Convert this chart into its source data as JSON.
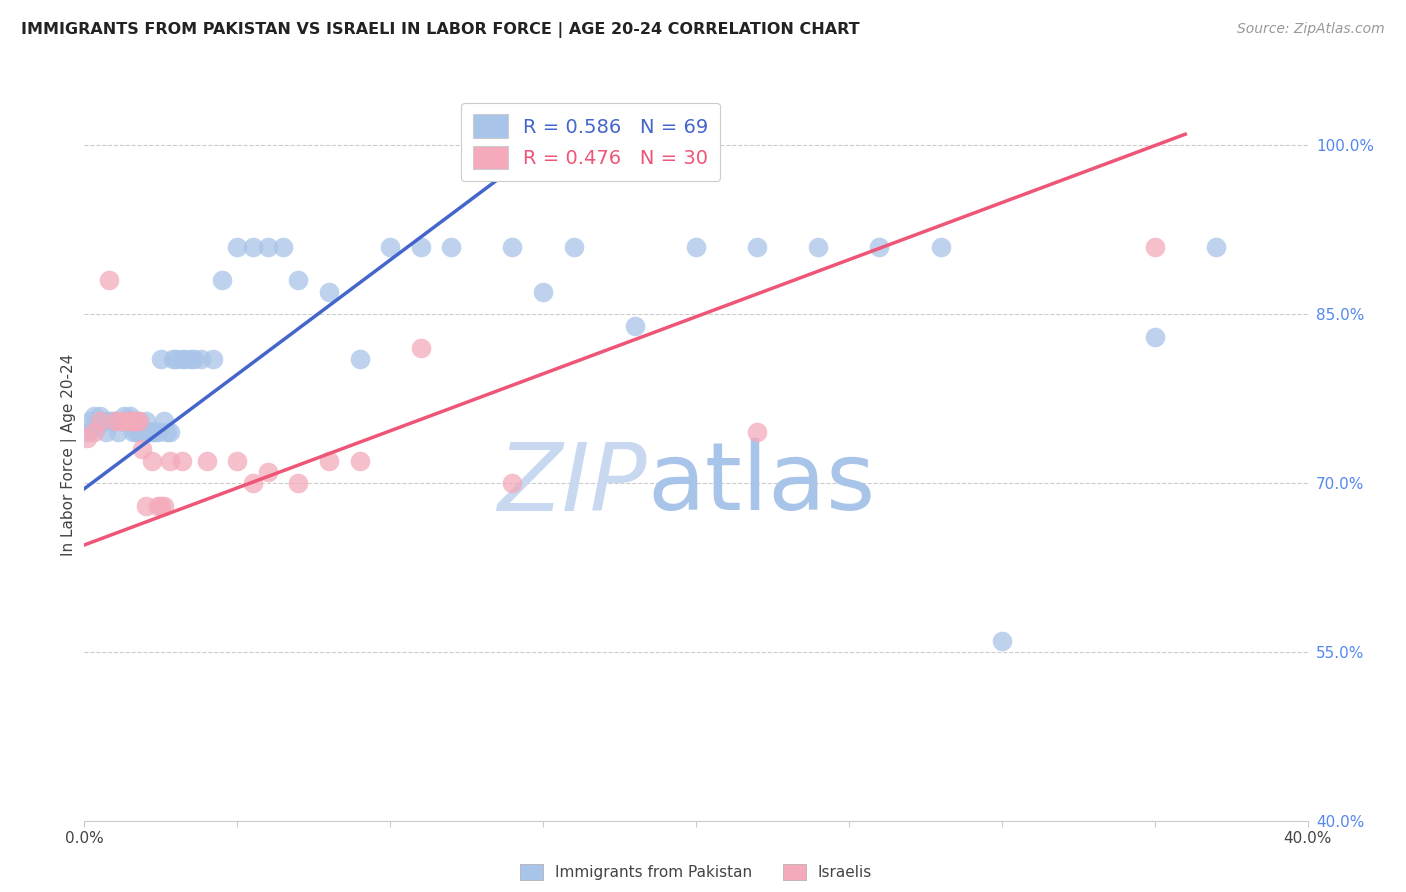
{
  "title": "IMMIGRANTS FROM PAKISTAN VS ISRAELI IN LABOR FORCE | AGE 20-24 CORRELATION CHART",
  "source": "Source: ZipAtlas.com",
  "ylabel": "In Labor Force | Age 20-24",
  "r_pakistan": 0.586,
  "n_pakistan": 69,
  "r_israeli": 0.476,
  "n_israeli": 30,
  "blue_color": "#A8C4E8",
  "pink_color": "#F4AABB",
  "blue_line_color": "#4466CC",
  "pink_line_color": "#EE5577",
  "legend_label_1": "Immigrants from Pakistan",
  "legend_label_2": "Israelis",
  "xlim": [
    0.0,
    0.4
  ],
  "ylim": [
    0.4,
    1.05
  ],
  "xticks": [
    0.0,
    0.05,
    0.1,
    0.15,
    0.2,
    0.25,
    0.3,
    0.35,
    0.4
  ],
  "ytick_positions": [
    0.4,
    0.55,
    0.7,
    0.85,
    1.0
  ],
  "ytick_labels": [
    "40.0%",
    "55.0%",
    "70.0%",
    "85.0%",
    "100.0%"
  ],
  "blue_line_x0": 0.0,
  "blue_line_y0": 0.695,
  "blue_line_x1": 0.155,
  "blue_line_y1": 1.01,
  "pink_line_x0": 0.0,
  "pink_line_y0": 0.645,
  "pink_line_x1": 0.36,
  "pink_line_y1": 1.01,
  "blue_x": [
    0.001,
    0.002,
    0.003,
    0.004,
    0.005,
    0.006,
    0.007,
    0.008,
    0.009,
    0.01,
    0.01,
    0.011,
    0.012,
    0.012,
    0.013,
    0.013,
    0.014,
    0.014,
    0.015,
    0.015,
    0.015,
    0.016,
    0.016,
    0.017,
    0.017,
    0.018,
    0.018,
    0.019,
    0.02,
    0.02,
    0.021,
    0.022,
    0.023,
    0.024,
    0.025,
    0.026,
    0.027,
    0.028,
    0.029,
    0.03,
    0.032,
    0.033,
    0.035,
    0.036,
    0.038,
    0.042,
    0.045,
    0.05,
    0.055,
    0.06,
    0.065,
    0.07,
    0.08,
    0.09,
    0.1,
    0.11,
    0.12,
    0.14,
    0.15,
    0.16,
    0.18,
    0.2,
    0.22,
    0.24,
    0.26,
    0.28,
    0.3,
    0.35,
    0.37
  ],
  "blue_y": [
    0.745,
    0.755,
    0.76,
    0.75,
    0.76,
    0.755,
    0.745,
    0.755,
    0.755,
    0.755,
    0.755,
    0.745,
    0.755,
    0.755,
    0.755,
    0.76,
    0.755,
    0.755,
    0.755,
    0.755,
    0.76,
    0.755,
    0.745,
    0.755,
    0.745,
    0.755,
    0.745,
    0.745,
    0.755,
    0.745,
    0.745,
    0.745,
    0.745,
    0.745,
    0.81,
    0.755,
    0.745,
    0.745,
    0.81,
    0.81,
    0.81,
    0.81,
    0.81,
    0.81,
    0.81,
    0.81,
    0.88,
    0.91,
    0.91,
    0.91,
    0.91,
    0.88,
    0.87,
    0.81,
    0.91,
    0.91,
    0.91,
    0.91,
    0.87,
    0.91,
    0.84,
    0.91,
    0.91,
    0.91,
    0.91,
    0.91,
    0.56,
    0.83,
    0.91
  ],
  "pink_x": [
    0.001,
    0.003,
    0.005,
    0.008,
    0.01,
    0.012,
    0.014,
    0.015,
    0.016,
    0.017,
    0.018,
    0.019,
    0.02,
    0.022,
    0.024,
    0.025,
    0.026,
    0.028,
    0.032,
    0.04,
    0.05,
    0.055,
    0.06,
    0.07,
    0.08,
    0.09,
    0.11,
    0.14,
    0.22,
    0.35
  ],
  "pink_y": [
    0.74,
    0.745,
    0.755,
    0.88,
    0.755,
    0.755,
    0.755,
    0.755,
    0.755,
    0.755,
    0.755,
    0.73,
    0.68,
    0.72,
    0.68,
    0.68,
    0.68,
    0.72,
    0.72,
    0.72,
    0.72,
    0.7,
    0.71,
    0.7,
    0.72,
    0.72,
    0.82,
    0.7,
    0.745,
    0.91
  ]
}
